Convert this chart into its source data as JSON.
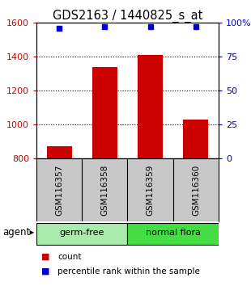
{
  "title": "GDS2163 / 1440825_s_at",
  "samples": [
    "GSM116357",
    "GSM116358",
    "GSM116359",
    "GSM116360"
  ],
  "bar_values": [
    875,
    1340,
    1410,
    1030
  ],
  "percentile_values": [
    96,
    97,
    97,
    97
  ],
  "ylim_left": [
    800,
    1600
  ],
  "ylim_right": [
    0,
    100
  ],
  "yticks_left": [
    800,
    1000,
    1200,
    1400,
    1600
  ],
  "yticks_right": [
    0,
    25,
    50,
    75,
    100
  ],
  "ytick_right_labels": [
    "0",
    "25",
    "50",
    "75",
    "100%"
  ],
  "bar_color": "#cc0000",
  "dot_color": "#0000cc",
  "agent_groups": [
    {
      "label": "germ-free",
      "samples": [
        0,
        1
      ],
      "color": "#aaeaaa"
    },
    {
      "label": "normal flora",
      "samples": [
        2,
        3
      ],
      "color": "#44dd44"
    }
  ],
  "legend_items": [
    {
      "label": "count",
      "color": "#cc0000"
    },
    {
      "label": "percentile rank within the sample",
      "color": "#0000cc"
    }
  ],
  "agent_label": "agent",
  "bg_color": "#ffffff",
  "sample_box_color": "#c8c8c8",
  "title_fontsize": 10.5,
  "tick_fontsize": 8,
  "sample_fontsize": 7.5,
  "group_fontsize": 8,
  "legend_fontsize": 7.5
}
